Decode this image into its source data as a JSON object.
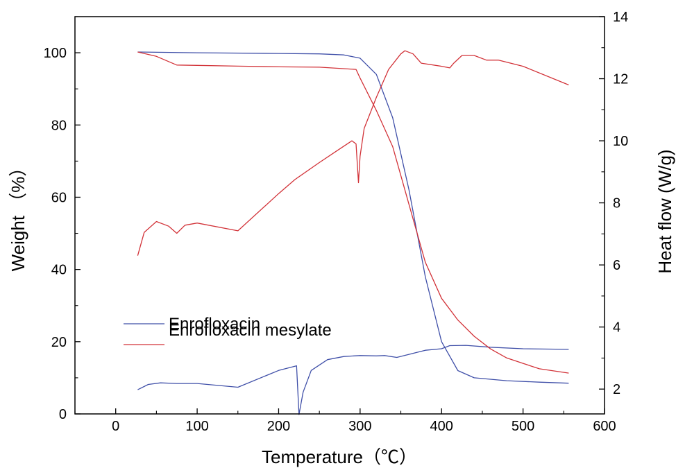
{
  "chart_data": {
    "type": "line",
    "xlabel": "Temperature（℃）",
    "ylabel_left": "Weight （%）",
    "ylabel_right": "Heat flow  (W/g)",
    "xlim": [
      -50,
      600
    ],
    "ylim_left": [
      0,
      110
    ],
    "ylim_right": [
      1.2,
      14
    ],
    "x_ticks": [
      0,
      100,
      200,
      300,
      400,
      500,
      600
    ],
    "y_left_ticks": [
      0,
      20,
      40,
      60,
      80,
      100
    ],
    "y_right_ticks": [
      2,
      4,
      6,
      8,
      10,
      12,
      14
    ],
    "legend": {
      "position": "lower-left"
    },
    "grid": false,
    "series": [
      {
        "name": "Enrofloxacin",
        "kind": "weight",
        "axis": "left",
        "color": "#3f4fa8",
        "x": [
          27,
          100,
          200,
          250,
          280,
          300,
          320,
          340,
          360,
          380,
          400,
          420,
          440,
          480,
          520,
          556
        ],
        "y": [
          100.2,
          100,
          99.8,
          99.7,
          99.4,
          98.5,
          94,
          82,
          62,
          38,
          20,
          12,
          10,
          9.2,
          8.8,
          8.5
        ]
      },
      {
        "name": "Enrofloxacin",
        "kind": "heat_flow",
        "axis": "right",
        "color": "#3f4fa8",
        "x": [
          27,
          40,
          55,
          75,
          100,
          150,
          200,
          222,
          225,
          230,
          240,
          260,
          280,
          300,
          320,
          330,
          345,
          360,
          380,
          400,
          410,
          430,
          460,
          500,
          556
        ],
        "y": [
          1.98,
          2.15,
          2.2,
          2.18,
          2.18,
          2.06,
          2.6,
          2.75,
          1.18,
          1.9,
          2.6,
          2.95,
          3.05,
          3.08,
          3.07,
          3.08,
          3.02,
          3.12,
          3.25,
          3.3,
          3.4,
          3.41,
          3.35,
          3.3,
          3.28
        ]
      },
      {
        "name": "Enrofloxacin mesylate",
        "kind": "weight",
        "axis": "left",
        "color": "#d23238",
        "x": [
          27,
          50,
          75,
          100,
          150,
          200,
          250,
          295,
          300,
          320,
          340,
          360,
          380,
          400,
          420,
          440,
          460,
          480,
          500,
          520,
          556
        ],
        "y": [
          100.2,
          99,
          96.6,
          96.5,
          96.3,
          96.1,
          96,
          95.4,
          93,
          84,
          74,
          58,
          42,
          32,
          26,
          21.5,
          18,
          15.5,
          14,
          12.5,
          11.3
        ]
      },
      {
        "name": "Enrofloxacin mesylate",
        "kind": "heat_flow",
        "axis": "right",
        "color": "#d23238",
        "x": [
          27,
          35,
          50,
          65,
          75,
          85,
          100,
          150,
          200,
          220,
          250,
          270,
          290,
          295,
          298,
          300,
          305,
          320,
          335,
          350,
          355,
          365,
          375,
          400,
          410,
          415,
          425,
          440,
          455,
          470,
          500,
          556
        ],
        "y": [
          6.3,
          7.05,
          7.4,
          7.25,
          7.02,
          7.28,
          7.35,
          7.1,
          8.3,
          8.75,
          9.3,
          9.65,
          10,
          9.9,
          8.65,
          9.5,
          10.4,
          11.4,
          12.3,
          12.8,
          12.9,
          12.8,
          12.5,
          12.4,
          12.35,
          12.5,
          12.75,
          12.75,
          12.6,
          12.6,
          12.4,
          11.8
        ]
      }
    ]
  }
}
